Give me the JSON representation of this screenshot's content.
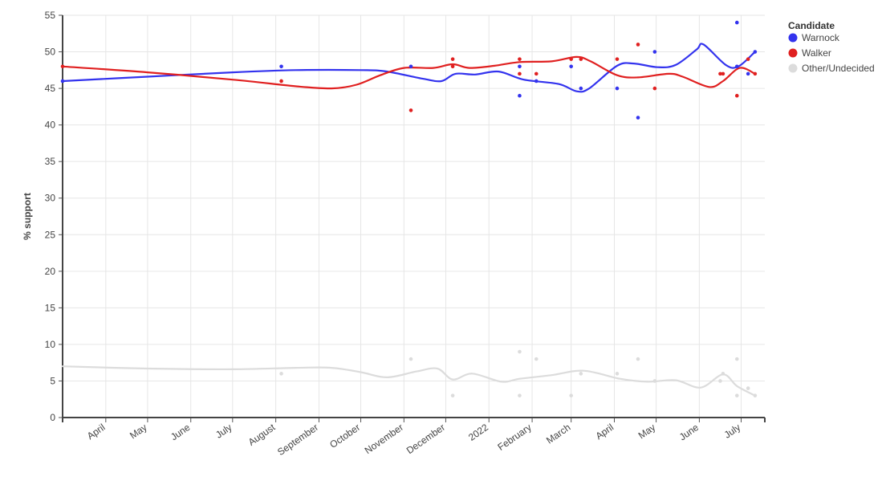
{
  "chart_data": {
    "type": "scatter",
    "ylabel": "% support",
    "xlabel": "",
    "ylim": [
      0,
      55
    ],
    "yticks": [
      0,
      5,
      10,
      15,
      20,
      25,
      30,
      35,
      40,
      45,
      50,
      55
    ],
    "xlim": [
      "2021-03-01",
      "2022-07-18"
    ],
    "xticks": [
      {
        "date": "2021-04-01",
        "label": "April"
      },
      {
        "date": "2021-05-01",
        "label": "May"
      },
      {
        "date": "2021-06-01",
        "label": "June"
      },
      {
        "date": "2021-07-01",
        "label": "July"
      },
      {
        "date": "2021-08-01",
        "label": "August"
      },
      {
        "date": "2021-09-01",
        "label": "September"
      },
      {
        "date": "2021-10-01",
        "label": "October"
      },
      {
        "date": "2021-11-01",
        "label": "November"
      },
      {
        "date": "2021-12-01",
        "label": "December"
      },
      {
        "date": "2022-01-01",
        "label": "2022"
      },
      {
        "date": "2022-02-01",
        "label": "February"
      },
      {
        "date": "2022-03-01",
        "label": "March"
      },
      {
        "date": "2022-04-01",
        "label": "April"
      },
      {
        "date": "2022-05-01",
        "label": "May"
      },
      {
        "date": "2022-06-01",
        "label": "June"
      },
      {
        "date": "2022-07-01",
        "label": "July"
      }
    ],
    "grid": true,
    "legend": {
      "title": "Candidate",
      "position": "top-right"
    },
    "series": [
      {
        "name": "Warnock",
        "color": "#3333ee",
        "points": [
          {
            "x": "2021-03-01",
            "y": 46
          },
          {
            "x": "2021-08-05",
            "y": 48
          },
          {
            "x": "2021-11-06",
            "y": 48
          },
          {
            "x": "2022-01-23",
            "y": 48
          },
          {
            "x": "2022-01-23",
            "y": 44
          },
          {
            "x": "2022-02-04",
            "y": 46
          },
          {
            "x": "2022-03-01",
            "y": 48
          },
          {
            "x": "2022-03-08",
            "y": 45
          },
          {
            "x": "2022-04-03",
            "y": 45
          },
          {
            "x": "2022-04-18",
            "y": 41
          },
          {
            "x": "2022-04-30",
            "y": 50
          },
          {
            "x": "2022-06-28",
            "y": 54
          },
          {
            "x": "2022-06-28",
            "y": 48
          },
          {
            "x": "2022-07-06",
            "y": 47
          },
          {
            "x": "2022-07-11",
            "y": 50
          }
        ],
        "trend": [
          {
            "x": "2021-03-01",
            "y": 46.0
          },
          {
            "x": "2021-05-01",
            "y": 46.6
          },
          {
            "x": "2021-07-01",
            "y": 47.2
          },
          {
            "x": "2021-08-15",
            "y": 47.5
          },
          {
            "x": "2021-10-01",
            "y": 47.5
          },
          {
            "x": "2021-10-20",
            "y": 47.3
          },
          {
            "x": "2021-11-15",
            "y": 46.3
          },
          {
            "x": "2021-11-28",
            "y": 46.0
          },
          {
            "x": "2021-12-08",
            "y": 47.0
          },
          {
            "x": "2021-12-22",
            "y": 46.9
          },
          {
            "x": "2022-01-08",
            "y": 47.3
          },
          {
            "x": "2022-01-26",
            "y": 46.2
          },
          {
            "x": "2022-02-20",
            "y": 45.6
          },
          {
            "x": "2022-03-05",
            "y": 44.6
          },
          {
            "x": "2022-03-14",
            "y": 45.0
          },
          {
            "x": "2022-04-03",
            "y": 48.1
          },
          {
            "x": "2022-04-15",
            "y": 48.4
          },
          {
            "x": "2022-05-02",
            "y": 47.9
          },
          {
            "x": "2022-05-15",
            "y": 48.2
          },
          {
            "x": "2022-05-30",
            "y": 50.3
          },
          {
            "x": "2022-06-04",
            "y": 51.0
          },
          {
            "x": "2022-06-20",
            "y": 48.2
          },
          {
            "x": "2022-06-29",
            "y": 48.0
          },
          {
            "x": "2022-07-11",
            "y": 50.0
          }
        ]
      },
      {
        "name": "Walker",
        "color": "#e02020",
        "points": [
          {
            "x": "2021-03-01",
            "y": 48
          },
          {
            "x": "2021-08-05",
            "y": 46
          },
          {
            "x": "2021-11-06",
            "y": 42
          },
          {
            "x": "2021-12-06",
            "y": 49
          },
          {
            "x": "2021-12-06",
            "y": 48
          },
          {
            "x": "2022-01-23",
            "y": 49
          },
          {
            "x": "2022-01-23",
            "y": 47
          },
          {
            "x": "2022-02-04",
            "y": 47
          },
          {
            "x": "2022-03-01",
            "y": 49
          },
          {
            "x": "2022-03-08",
            "y": 49
          },
          {
            "x": "2022-04-03",
            "y": 49
          },
          {
            "x": "2022-04-18",
            "y": 51
          },
          {
            "x": "2022-04-30",
            "y": 45
          },
          {
            "x": "2022-06-16",
            "y": 47
          },
          {
            "x": "2022-06-18",
            "y": 47
          },
          {
            "x": "2022-06-28",
            "y": 44
          },
          {
            "x": "2022-07-06",
            "y": 49
          },
          {
            "x": "2022-07-11",
            "y": 47
          }
        ],
        "trend": [
          {
            "x": "2021-03-01",
            "y": 48.0
          },
          {
            "x": "2021-05-01",
            "y": 47.2
          },
          {
            "x": "2021-07-01",
            "y": 46.2
          },
          {
            "x": "2021-08-15",
            "y": 45.3
          },
          {
            "x": "2021-09-10",
            "y": 45.0
          },
          {
            "x": "2021-09-28",
            "y": 45.5
          },
          {
            "x": "2021-10-15",
            "y": 46.8
          },
          {
            "x": "2021-11-01",
            "y": 47.8
          },
          {
            "x": "2021-11-22",
            "y": 47.8
          },
          {
            "x": "2021-12-06",
            "y": 48.3
          },
          {
            "x": "2021-12-18",
            "y": 47.8
          },
          {
            "x": "2022-01-05",
            "y": 48.1
          },
          {
            "x": "2022-01-23",
            "y": 48.6
          },
          {
            "x": "2022-02-15",
            "y": 48.7
          },
          {
            "x": "2022-03-05",
            "y": 49.3
          },
          {
            "x": "2022-03-15",
            "y": 48.7
          },
          {
            "x": "2022-04-03",
            "y": 46.8
          },
          {
            "x": "2022-04-18",
            "y": 46.5
          },
          {
            "x": "2022-05-10",
            "y": 47.0
          },
          {
            "x": "2022-05-20",
            "y": 46.6
          },
          {
            "x": "2022-06-08",
            "y": 45.2
          },
          {
            "x": "2022-06-18",
            "y": 46.0
          },
          {
            "x": "2022-06-30",
            "y": 47.8
          },
          {
            "x": "2022-07-11",
            "y": 47.0
          }
        ]
      },
      {
        "name": "Other/Undecided",
        "color": "#dcdcdc",
        "points": [
          {
            "x": "2021-08-05",
            "y": 6
          },
          {
            "x": "2021-11-06",
            "y": 8
          },
          {
            "x": "2021-12-06",
            "y": 3
          },
          {
            "x": "2022-01-23",
            "y": 9
          },
          {
            "x": "2022-01-23",
            "y": 3
          },
          {
            "x": "2022-02-04",
            "y": 8
          },
          {
            "x": "2022-03-01",
            "y": 3
          },
          {
            "x": "2022-03-08",
            "y": 6
          },
          {
            "x": "2022-04-03",
            "y": 6
          },
          {
            "x": "2022-04-18",
            "y": 8
          },
          {
            "x": "2022-04-30",
            "y": 5
          },
          {
            "x": "2022-06-16",
            "y": 5
          },
          {
            "x": "2022-06-18",
            "y": 6
          },
          {
            "x": "2022-06-28",
            "y": 8
          },
          {
            "x": "2022-06-28",
            "y": 3
          },
          {
            "x": "2022-07-06",
            "y": 4
          },
          {
            "x": "2022-07-11",
            "y": 3
          }
        ],
        "trend": [
          {
            "x": "2021-03-01",
            "y": 7.0
          },
          {
            "x": "2021-05-01",
            "y": 6.7
          },
          {
            "x": "2021-07-01",
            "y": 6.6
          },
          {
            "x": "2021-08-15",
            "y": 6.8
          },
          {
            "x": "2021-09-10",
            "y": 6.8
          },
          {
            "x": "2021-10-01",
            "y": 6.2
          },
          {
            "x": "2021-10-20",
            "y": 5.5
          },
          {
            "x": "2021-11-10",
            "y": 6.3
          },
          {
            "x": "2021-11-25",
            "y": 6.7
          },
          {
            "x": "2021-12-06",
            "y": 5.2
          },
          {
            "x": "2021-12-20",
            "y": 6.0
          },
          {
            "x": "2022-01-10",
            "y": 4.9
          },
          {
            "x": "2022-01-23",
            "y": 5.3
          },
          {
            "x": "2022-02-15",
            "y": 5.8
          },
          {
            "x": "2022-03-10",
            "y": 6.4
          },
          {
            "x": "2022-04-05",
            "y": 5.3
          },
          {
            "x": "2022-04-25",
            "y": 4.9
          },
          {
            "x": "2022-05-15",
            "y": 5.1
          },
          {
            "x": "2022-06-02",
            "y": 4.1
          },
          {
            "x": "2022-06-18",
            "y": 5.9
          },
          {
            "x": "2022-06-28",
            "y": 4.3
          },
          {
            "x": "2022-07-11",
            "y": 3.0
          }
        ]
      }
    ]
  }
}
